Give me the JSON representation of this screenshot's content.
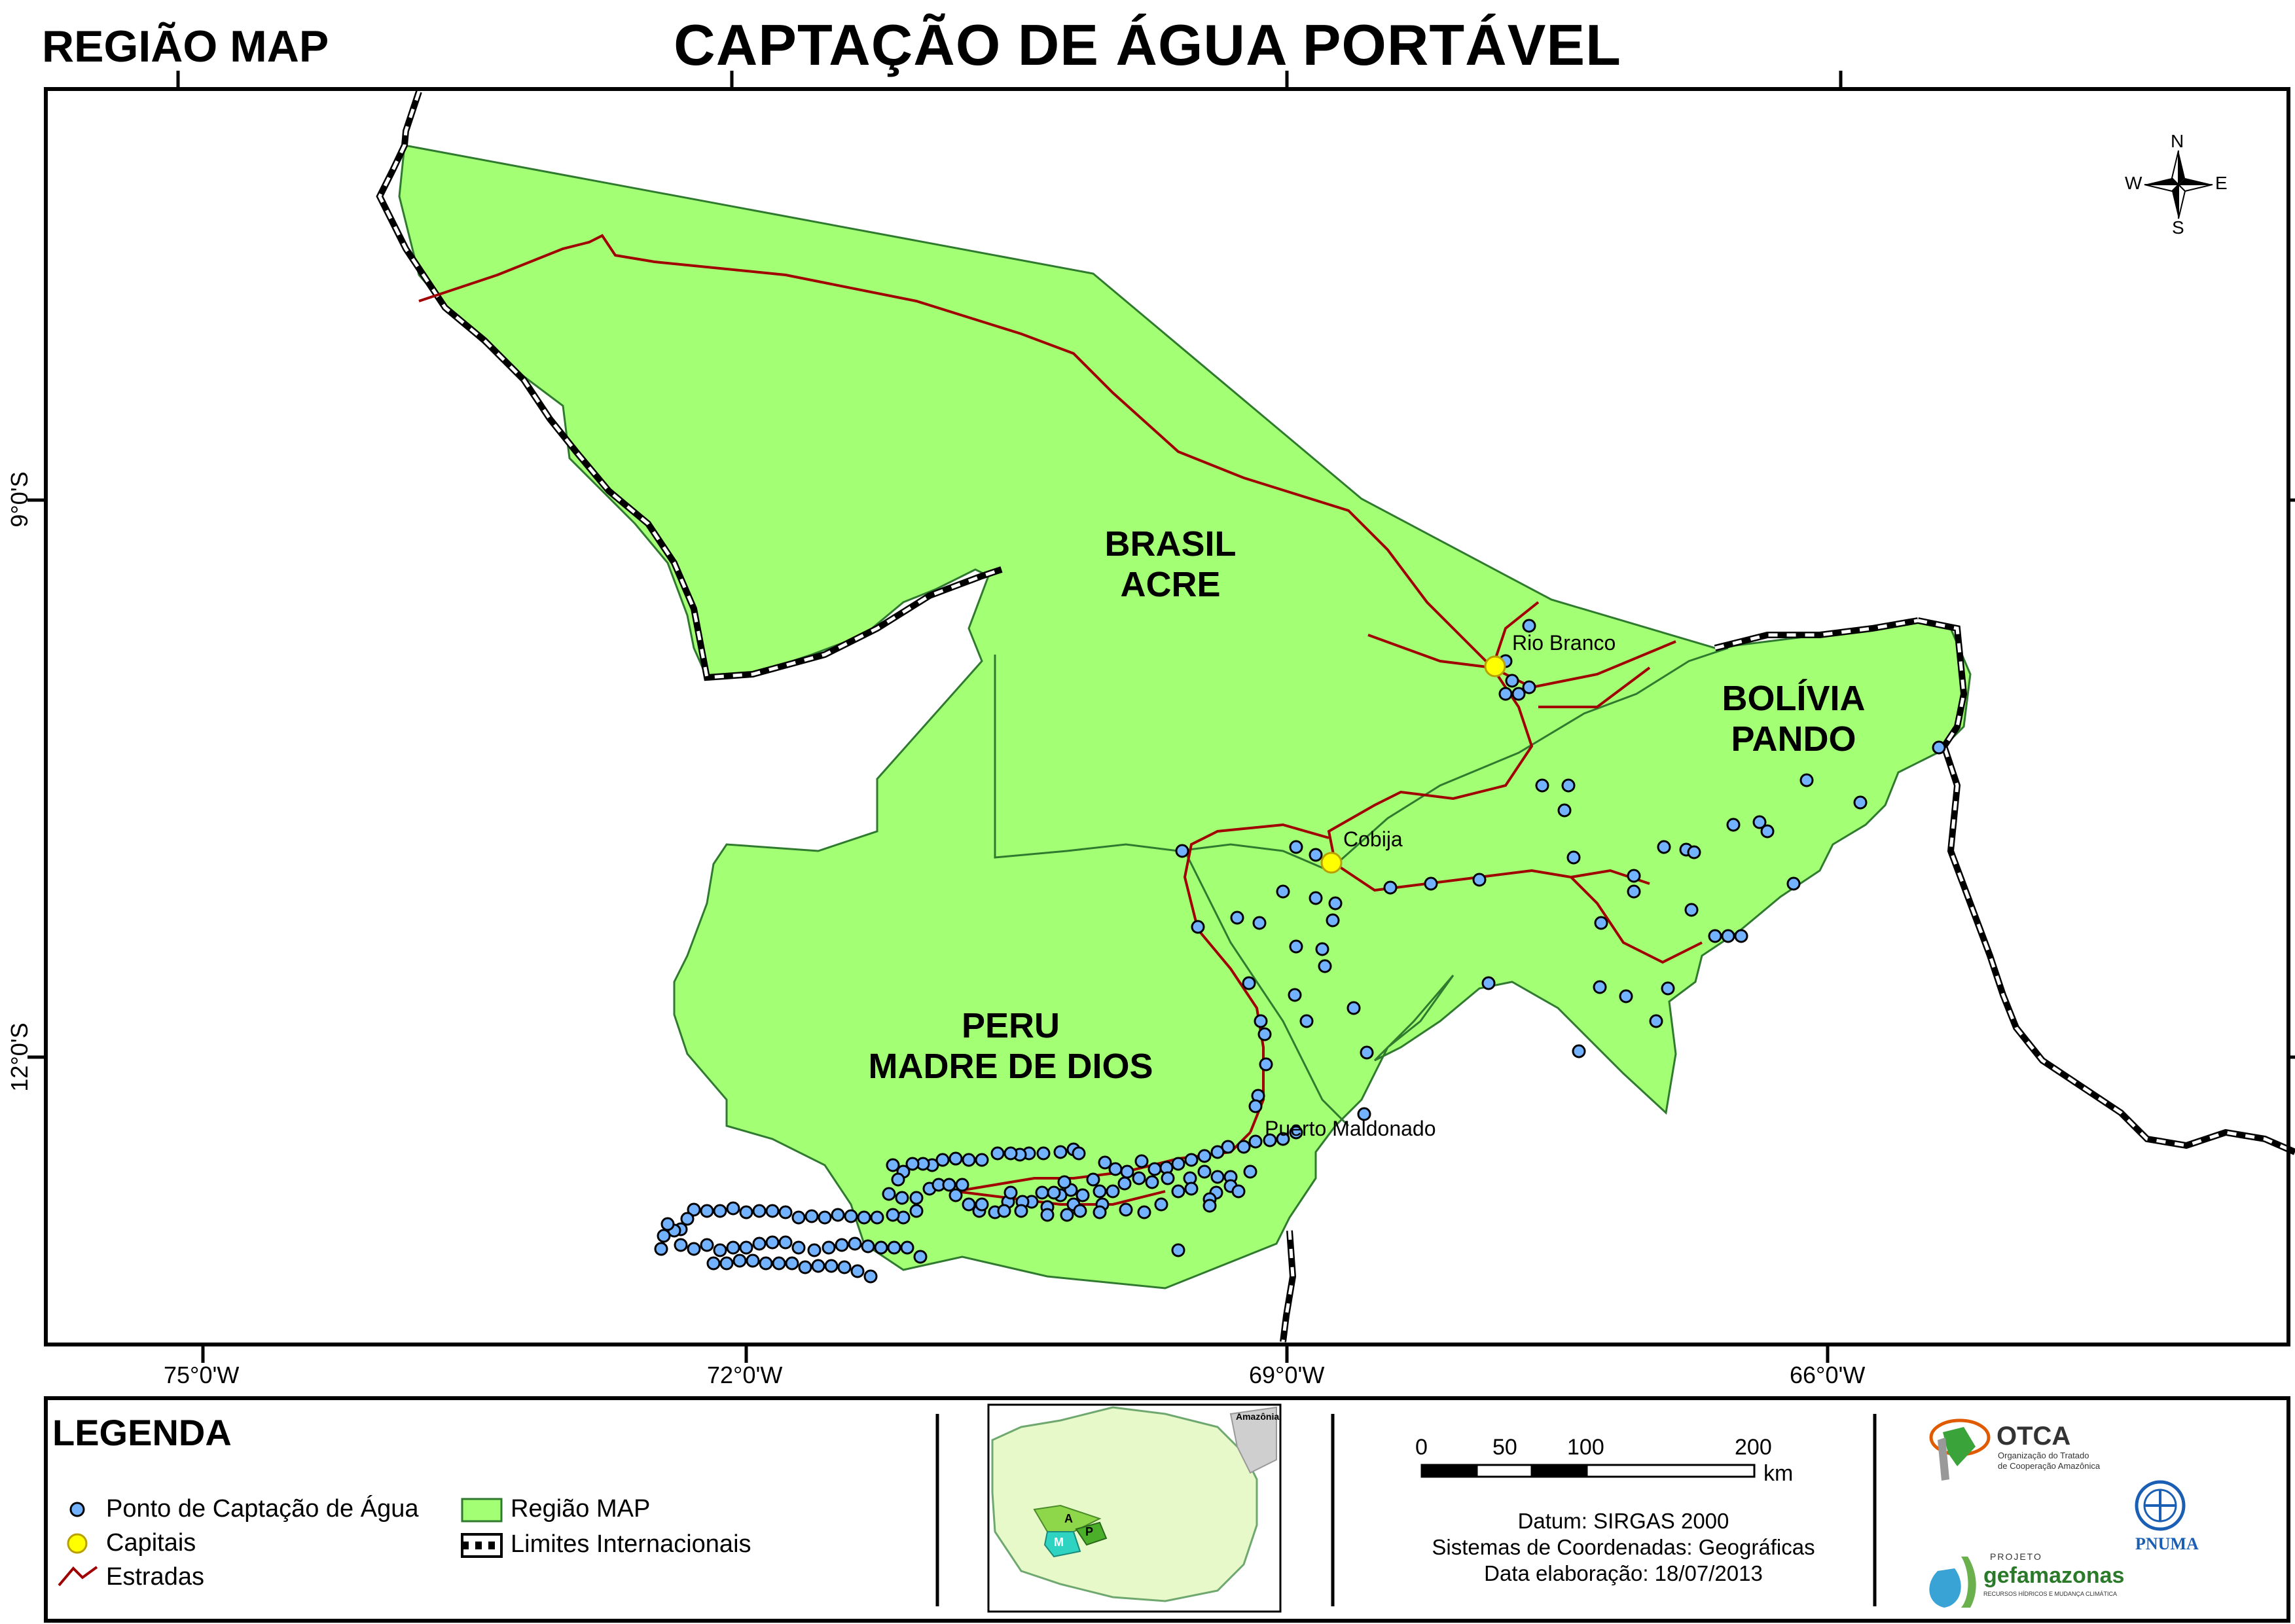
{
  "header": {
    "title": "CAPTAÇÃO DE ÁGUA PORTÁVEL",
    "corner_title": "REGIÃO MAP"
  },
  "grid": {
    "lon_labels": [
      "75°0'W",
      "72°0'W",
      "69°0'W",
      "66°0'W"
    ],
    "lat_labels": [
      "9°0'S",
      "12°0'S"
    ]
  },
  "regions": {
    "brasil": [
      "BRASIL",
      "ACRE"
    ],
    "bolivia": [
      "BOLÍVIA",
      "PANDO"
    ],
    "peru": [
      "PERU",
      "MADRE DE DIOS"
    ]
  },
  "capitals": [
    "Rio Branco",
    "Cobija",
    "Puerto Maldonado"
  ],
  "compass": {
    "n": "N",
    "s": "S",
    "e": "E",
    "w": "W"
  },
  "legend": {
    "title": "LEGENDA",
    "items": [
      "Ponto de Captação de Água",
      "Capitais",
      "Estradas",
      "Região MAP",
      "Limites Internacionais"
    ]
  },
  "inset": {
    "label": "Amazônia",
    "letters": [
      "A",
      "P",
      "M"
    ]
  },
  "scale": {
    "ticks": [
      "0",
      "50",
      "100",
      "200"
    ],
    "unit": "km"
  },
  "info": {
    "datum": "Datum: SIRGAS 2000",
    "coords": "Sistemas de Coordenadas: Geográficas",
    "date": "Data elaboração: 18/07/2013"
  },
  "logos": {
    "otca": "OTCA",
    "otca_sub1": "Organização do Tratado",
    "otca_sub2": "de Cooperação Amazônica",
    "pnuma": "PNUMA",
    "projeto": "PROJETO",
    "gef": "gefamazonas",
    "gef_sub": "RECURSOS HÍDRICOS E MUDANÇA CLIMÁTICA"
  },
  "colors": {
    "region_fill": "#a3ff73",
    "region_stroke": "#2f7a2f",
    "road": "#a00000",
    "point_fill": "#73b2ff",
    "capital_fill": "#ffff00"
  }
}
